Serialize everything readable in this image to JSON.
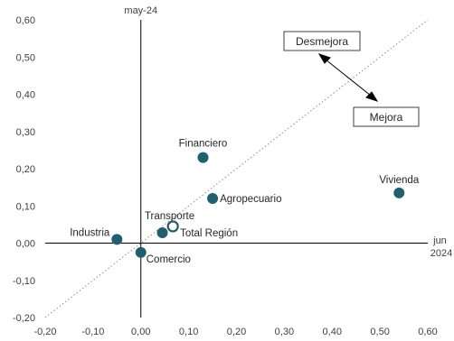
{
  "chart_data": {
    "type": "scatter",
    "xlabel": "jun 2024",
    "ylabel": "may-24",
    "xlim": [
      -0.2,
      0.6
    ],
    "ylim": [
      -0.2,
      0.6
    ],
    "x_ticks": [
      "-0,20",
      "-0,10",
      "0,00",
      "0,10",
      "0,20",
      "0,30",
      "0,40",
      "0,50",
      "0,60"
    ],
    "y_ticks": [
      "-0,20",
      "-0,10",
      "0,00",
      "0,10",
      "0,20",
      "0,30",
      "0,40",
      "0,50",
      "0,60"
    ],
    "diagonal_reference": true,
    "grid": false,
    "annotations": {
      "worse": "Desmejora",
      "better": "Mejora"
    },
    "points": [
      {
        "label": "Financiero",
        "x": 0.13,
        "y": 0.23,
        "style": "filled"
      },
      {
        "label": "Agropecuario",
        "x": 0.15,
        "y": 0.12,
        "style": "filled"
      },
      {
        "label": "Vivienda",
        "x": 0.54,
        "y": 0.135,
        "style": "filled"
      },
      {
        "label": "Transporte",
        "x": 0.045,
        "y": 0.028,
        "style": "filled"
      },
      {
        "label": "Total Región",
        "x": 0.067,
        "y": 0.045,
        "style": "hollow"
      },
      {
        "label": "Industria",
        "x": -0.05,
        "y": 0.01,
        "style": "filled"
      },
      {
        "label": "Comercio",
        "x": 0.0,
        "y": -0.025,
        "style": "filled"
      }
    ],
    "colors": {
      "point": "#1f5f6e",
      "highlight_label": "#2a6f80",
      "axis": "#000000",
      "diagonal": "#8c8c8c"
    }
  }
}
